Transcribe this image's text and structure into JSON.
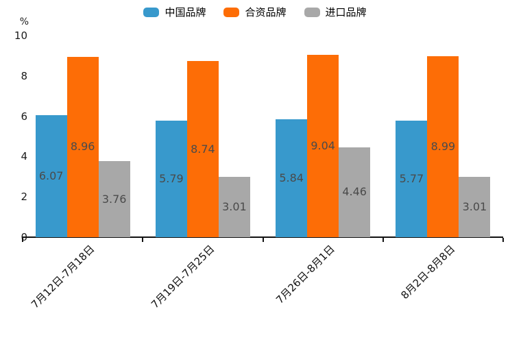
{
  "chart_data": {
    "type": "bar",
    "title": "",
    "unit_label": "%",
    "categories": [
      "7月12日-7月18日",
      "7月19日-7月25日",
      "7月26日-8月1日",
      "8月2日-8月8日"
    ],
    "series": [
      {
        "name": "中国品牌",
        "color": "#3899cc",
        "values": [
          6.07,
          5.79,
          5.84,
          5.77
        ]
      },
      {
        "name": "合资品牌",
        "color": "#fd6d06",
        "values": [
          8.96,
          8.74,
          9.04,
          8.99
        ]
      },
      {
        "name": "进口品牌",
        "color": "#a8a8a8",
        "values": [
          3.76,
          3.01,
          4.46,
          3.01
        ]
      }
    ],
    "value_label_format": "2dp",
    "xlabel": "",
    "ylabel": "",
    "ylim": [
      0,
      10
    ],
    "yticks": [
      0,
      2,
      4,
      6,
      8,
      10
    ],
    "grid": false,
    "legend_position": "top-center",
    "x_tick_label_rotation_deg": 45
  },
  "colors": {
    "background": "#ffffff",
    "axis": "#111111",
    "axis_tick_label": "#1a1a1a",
    "bar_value_label": "#4a4a4a"
  }
}
